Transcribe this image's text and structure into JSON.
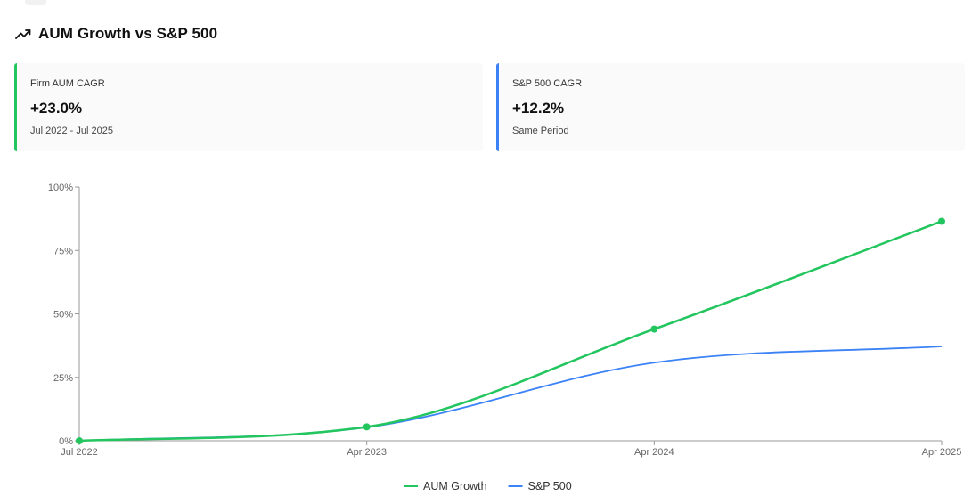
{
  "header": {
    "title": "AUM Growth vs S&P 500",
    "icon": "trending-up-icon"
  },
  "cards": [
    {
      "label": "Firm AUM CAGR",
      "value": "+23.0%",
      "sub": "Jul 2022 - Jul 2025",
      "accent": "#22c55e"
    },
    {
      "label": "S&P 500 CAGR",
      "value": "+12.2%",
      "sub": "Same Period",
      "accent": "#3b82f6"
    }
  ],
  "chart_data": {
    "type": "line",
    "x": [
      "Jul 2022",
      "Apr 2023",
      "Apr 2024",
      "Apr 2025"
    ],
    "series": [
      {
        "name": "AUM Growth",
        "color": "#22c55e",
        "values": [
          0,
          5.5,
          44,
          86.5
        ],
        "markers": true
      },
      {
        "name": "S&P 500",
        "color": "#3b82f6",
        "values": [
          0,
          5.3,
          30.8,
          37.2
        ],
        "markers": false
      }
    ],
    "yticks": [
      "0%",
      "25%",
      "50%",
      "75%",
      "100%"
    ],
    "ylim": [
      0,
      100
    ],
    "grid": false,
    "legend": "bottom-center"
  }
}
